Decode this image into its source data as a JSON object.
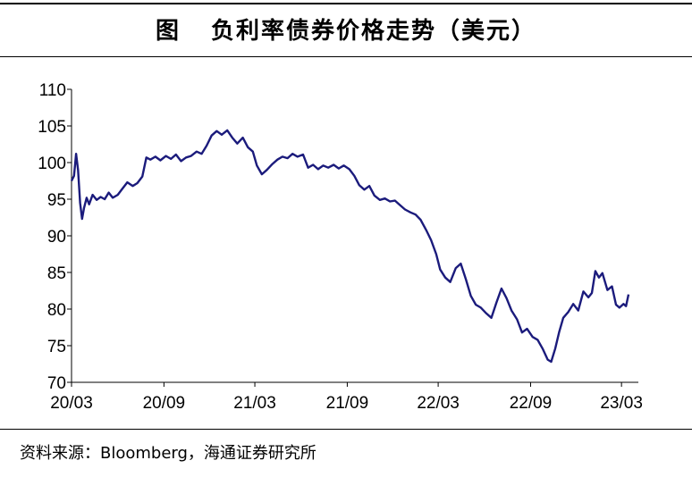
{
  "header": {
    "fig_label": "图",
    "title": "负利率债券价格走势（美元）"
  },
  "source": "资料来源：Bloomberg，海通证券研究所",
  "colors": {
    "series": "#1b1b7c",
    "axis": "#000000"
  },
  "chart_data": {
    "type": "line",
    "title": "负利率债券价格走势（美元）",
    "xlabel": "",
    "ylabel": "",
    "ylim": [
      70,
      110
    ],
    "yticks": [
      70,
      75,
      80,
      85,
      90,
      95,
      100,
      105,
      110
    ],
    "xlim": [
      "2020-03-01",
      "2023-03-31"
    ],
    "xticks": [
      {
        "label": "20/03",
        "date": "2020-03-01"
      },
      {
        "label": "20/09",
        "date": "2020-09-01"
      },
      {
        "label": "21/03",
        "date": "2021-03-01"
      },
      {
        "label": "21/09",
        "date": "2021-09-01"
      },
      {
        "label": "22/03",
        "date": "2022-03-01"
      },
      {
        "label": "22/09",
        "date": "2022-09-01"
      },
      {
        "label": "23/03",
        "date": "2023-03-01"
      }
    ],
    "grid": false,
    "series": [
      {
        "points": [
          [
            "2020-03-01",
            97.5
          ],
          [
            "2020-03-06",
            98.2
          ],
          [
            "2020-03-10",
            101.2
          ],
          [
            "2020-03-14",
            99.0
          ],
          [
            "2020-03-18",
            94.5
          ],
          [
            "2020-03-22",
            92.3
          ],
          [
            "2020-03-26",
            93.8
          ],
          [
            "2020-03-31",
            95.2
          ],
          [
            "2020-04-05",
            94.3
          ],
          [
            "2020-04-12",
            95.6
          ],
          [
            "2020-04-20",
            94.9
          ],
          [
            "2020-04-28",
            95.3
          ],
          [
            "2020-05-06",
            95.0
          ],
          [
            "2020-05-14",
            95.9
          ],
          [
            "2020-05-22",
            95.2
          ],
          [
            "2020-06-01",
            95.6
          ],
          [
            "2020-06-10",
            96.4
          ],
          [
            "2020-06-20",
            97.3
          ],
          [
            "2020-07-01",
            96.8
          ],
          [
            "2020-07-10",
            97.2
          ],
          [
            "2020-07-20",
            98.1
          ],
          [
            "2020-07-28",
            100.7
          ],
          [
            "2020-08-05",
            100.4
          ],
          [
            "2020-08-15",
            100.8
          ],
          [
            "2020-08-25",
            100.3
          ],
          [
            "2020-09-05",
            100.9
          ],
          [
            "2020-09-15",
            100.5
          ],
          [
            "2020-09-25",
            101.1
          ],
          [
            "2020-10-05",
            100.2
          ],
          [
            "2020-10-15",
            100.7
          ],
          [
            "2020-10-25",
            100.9
          ],
          [
            "2020-11-05",
            101.5
          ],
          [
            "2020-11-15",
            101.2
          ],
          [
            "2020-11-25",
            102.3
          ],
          [
            "2020-12-05",
            103.7
          ],
          [
            "2020-12-15",
            104.3
          ],
          [
            "2020-12-25",
            103.8
          ],
          [
            "2021-01-05",
            104.4
          ],
          [
            "2021-01-15",
            103.4
          ],
          [
            "2021-01-25",
            102.6
          ],
          [
            "2021-02-05",
            103.4
          ],
          [
            "2021-02-15",
            102.1
          ],
          [
            "2021-02-25",
            101.5
          ],
          [
            "2021-03-05",
            99.6
          ],
          [
            "2021-03-15",
            98.4
          ],
          [
            "2021-03-25",
            99.0
          ],
          [
            "2021-04-05",
            99.8
          ],
          [
            "2021-04-15",
            100.4
          ],
          [
            "2021-04-25",
            100.8
          ],
          [
            "2021-05-05",
            100.6
          ],
          [
            "2021-05-15",
            101.2
          ],
          [
            "2021-05-25",
            100.8
          ],
          [
            "2021-06-05",
            101.1
          ],
          [
            "2021-06-15",
            99.3
          ],
          [
            "2021-06-25",
            99.7
          ],
          [
            "2021-07-05",
            99.1
          ],
          [
            "2021-07-15",
            99.6
          ],
          [
            "2021-07-25",
            99.3
          ],
          [
            "2021-08-05",
            99.7
          ],
          [
            "2021-08-15",
            99.2
          ],
          [
            "2021-08-25",
            99.6
          ],
          [
            "2021-09-05",
            99.1
          ],
          [
            "2021-09-15",
            98.2
          ],
          [
            "2021-09-25",
            96.9
          ],
          [
            "2021-10-05",
            96.3
          ],
          [
            "2021-10-15",
            96.8
          ],
          [
            "2021-10-25",
            95.5
          ],
          [
            "2021-11-05",
            94.9
          ],
          [
            "2021-11-15",
            95.1
          ],
          [
            "2021-11-25",
            94.7
          ],
          [
            "2021-12-05",
            94.8
          ],
          [
            "2021-12-15",
            94.2
          ],
          [
            "2021-12-25",
            93.6
          ],
          [
            "2022-01-05",
            93.2
          ],
          [
            "2022-01-15",
            92.9
          ],
          [
            "2022-01-25",
            92.2
          ],
          [
            "2022-02-05",
            90.8
          ],
          [
            "2022-02-15",
            89.4
          ],
          [
            "2022-02-25",
            87.5
          ],
          [
            "2022-03-05",
            85.4
          ],
          [
            "2022-03-15",
            84.3
          ],
          [
            "2022-03-25",
            83.7
          ],
          [
            "2022-04-05",
            85.6
          ],
          [
            "2022-04-15",
            86.2
          ],
          [
            "2022-04-25",
            84.1
          ],
          [
            "2022-05-05",
            81.8
          ],
          [
            "2022-05-15",
            80.6
          ],
          [
            "2022-05-25",
            80.2
          ],
          [
            "2022-06-05",
            79.4
          ],
          [
            "2022-06-15",
            78.8
          ],
          [
            "2022-06-25",
            80.9
          ],
          [
            "2022-07-05",
            82.8
          ],
          [
            "2022-07-15",
            81.5
          ],
          [
            "2022-07-25",
            79.8
          ],
          [
            "2022-08-05",
            78.6
          ],
          [
            "2022-08-15",
            76.8
          ],
          [
            "2022-08-25",
            77.3
          ],
          [
            "2022-09-05",
            76.2
          ],
          [
            "2022-09-15",
            75.8
          ],
          [
            "2022-09-25",
            74.6
          ],
          [
            "2022-10-05",
            73.1
          ],
          [
            "2022-10-12",
            72.8
          ],
          [
            "2022-10-20",
            74.6
          ],
          [
            "2022-10-28",
            76.9
          ],
          [
            "2022-11-05",
            78.8
          ],
          [
            "2022-11-15",
            79.6
          ],
          [
            "2022-11-25",
            80.7
          ],
          [
            "2022-12-05",
            79.8
          ],
          [
            "2022-12-15",
            82.4
          ],
          [
            "2022-12-25",
            81.6
          ],
          [
            "2023-01-01",
            82.2
          ],
          [
            "2023-01-08",
            85.2
          ],
          [
            "2023-01-15",
            84.3
          ],
          [
            "2023-01-22",
            84.9
          ],
          [
            "2023-02-01",
            82.6
          ],
          [
            "2023-02-10",
            83.1
          ],
          [
            "2023-02-18",
            80.6
          ],
          [
            "2023-02-25",
            80.2
          ],
          [
            "2023-03-05",
            80.7
          ],
          [
            "2023-03-10",
            80.4
          ],
          [
            "2023-03-15",
            82.0
          ]
        ]
      }
    ]
  }
}
